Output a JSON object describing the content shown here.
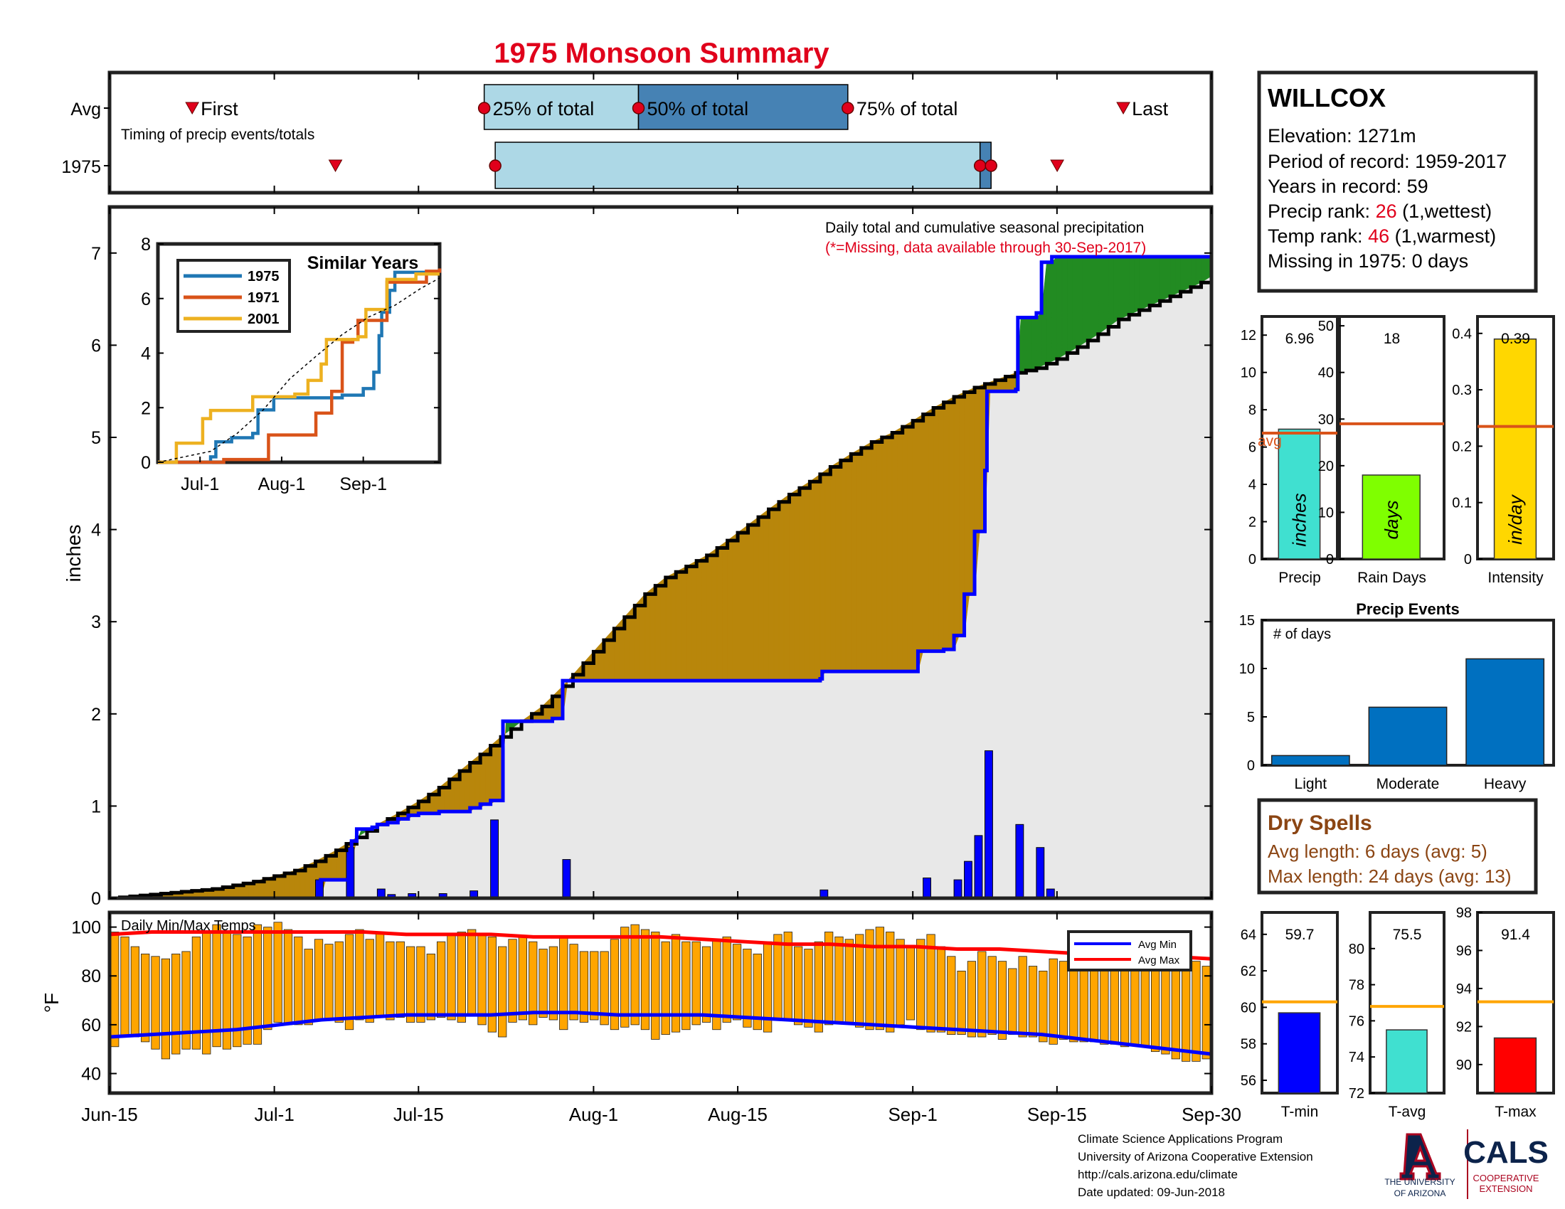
{
  "title": "1975 Monsoon Summary",
  "timing": {
    "row_avg": "Avg",
    "row_year": "1975",
    "caption": "Timing of precip events/totals",
    "first": "First",
    "last": "Last",
    "p25": "25% of total",
    "p50": "50% of total",
    "p75": "75% of total",
    "avg_marks": {
      "first": 7.5,
      "p25": 34,
      "p50": 48,
      "p75": 67,
      "last": 92
    },
    "year_marks": {
      "first": 20.5,
      "p25": 35,
      "p50": 79,
      "p75": 80,
      "last": 86
    }
  },
  "station": {
    "name": "WILLCOX",
    "elevation": "Elevation: 1271m",
    "period": "Period of record: 1959-2017",
    "years": "Years in record: 59",
    "precip_rank_label": "Precip rank: ",
    "precip_rank": "26",
    "precip_rank_note": " (1,wettest)",
    "temp_rank_label": "Temp rank: ",
    "temp_rank": "46",
    "temp_rank_note": " (1,warmest)",
    "missing": "Missing in 1975: 0 days"
  },
  "main_chart": {
    "annotation": "Daily total and cumulative seasonal precipitation",
    "missing_note": "(*=Missing, data available through 30-Sep-2017)",
    "ylabel": "inches",
    "y_ticks": [
      "0",
      "1",
      "2",
      "3",
      "4",
      "5",
      "6",
      "7"
    ],
    "x_ticks": [
      "Jun-15",
      "Jul-1",
      "Jul-15",
      "Aug-1",
      "Aug-15",
      "Sep-1",
      "Sep-15",
      "Sep-30"
    ]
  },
  "chart_data": [
    {
      "type": "area",
      "name": "cumulative-precip",
      "x_unit": "day of season (0 = Jun-15)",
      "ylim": [
        0,
        7.5
      ],
      "xlim": [
        0,
        107
      ],
      "avg_cumulative": [
        [
          0,
          0
        ],
        [
          2,
          0.02
        ],
        [
          4,
          0.04
        ],
        [
          6,
          0.06
        ],
        [
          8,
          0.08
        ],
        [
          10,
          0.1
        ],
        [
          12,
          0.14
        ],
        [
          14,
          0.18
        ],
        [
          16,
          0.24
        ],
        [
          18,
          0.3
        ],
        [
          20,
          0.4
        ],
        [
          22,
          0.52
        ],
        [
          24,
          0.66
        ],
        [
          26,
          0.8
        ],
        [
          28,
          0.92
        ],
        [
          30,
          1.05
        ],
        [
          32,
          1.2
        ],
        [
          34,
          1.38
        ],
        [
          36,
          1.56
        ],
        [
          38,
          1.75
        ],
        [
          40,
          1.92
        ],
        [
          42,
          2.08
        ],
        [
          44,
          2.3
        ],
        [
          46,
          2.55
        ],
        [
          48,
          2.8
        ],
        [
          50,
          3.05
        ],
        [
          52,
          3.3
        ],
        [
          54,
          3.48
        ],
        [
          56,
          3.6
        ],
        [
          58,
          3.72
        ],
        [
          60,
          3.88
        ],
        [
          62,
          4.05
        ],
        [
          64,
          4.22
        ],
        [
          66,
          4.38
        ],
        [
          68,
          4.52
        ],
        [
          70,
          4.68
        ],
        [
          72,
          4.82
        ],
        [
          74,
          4.95
        ],
        [
          76,
          5.05
        ],
        [
          78,
          5.18
        ],
        [
          80,
          5.32
        ],
        [
          82,
          5.44
        ],
        [
          84,
          5.54
        ],
        [
          86,
          5.62
        ],
        [
          88,
          5.7
        ],
        [
          90,
          5.75
        ],
        [
          92,
          5.85
        ],
        [
          94,
          5.98
        ],
        [
          96,
          6.12
        ],
        [
          98,
          6.28
        ],
        [
          100,
          6.38
        ],
        [
          102,
          6.48
        ],
        [
          104,
          6.58
        ],
        [
          106,
          6.68
        ],
        [
          107,
          6.75
        ]
      ],
      "year_cumulative": [
        [
          0,
          0
        ],
        [
          20,
          0
        ],
        [
          20.5,
          0.2
        ],
        [
          23,
          0.2
        ],
        [
          23.2,
          0.42
        ],
        [
          23.5,
          0.62
        ],
        [
          24,
          0.75
        ],
        [
          25.5,
          0.77
        ],
        [
          26,
          0.8
        ],
        [
          27,
          0.82
        ],
        [
          28,
          0.86
        ],
        [
          29,
          0.9
        ],
        [
          30,
          0.92
        ],
        [
          32,
          0.94
        ],
        [
          35,
          0.98
        ],
        [
          36,
          1.02
        ],
        [
          37,
          1.06
        ],
        [
          38,
          1.06
        ],
        [
          38.2,
          1.92
        ],
        [
          43,
          1.95
        ],
        [
          44,
          2.36
        ],
        [
          69,
          2.38
        ],
        [
          69.2,
          2.46
        ],
        [
          78,
          2.46
        ],
        [
          78.5,
          2.68
        ],
        [
          81,
          2.7
        ],
        [
          82,
          2.85
        ],
        [
          83,
          3.3
        ],
        [
          84,
          3.98
        ],
        [
          85,
          4.64
        ],
        [
          85.2,
          5.5
        ],
        [
          88,
          5.52
        ],
        [
          88.2,
          6.3
        ],
        [
          90,
          6.35
        ],
        [
          90.5,
          6.9
        ],
        [
          91.5,
          6.96
        ],
        [
          107,
          6.96
        ]
      ],
      "series": [
        {
          "name": "",
          "color": "#0000ff"
        },
        {
          "name": "",
          "color": "#000000"
        }
      ],
      "fill_colors": {
        "below_avg": "#b8860b",
        "above_avg": "#228b22",
        "base": "#e8e8e8"
      },
      "daily_bars": [
        [
          20,
          0.2
        ],
        [
          23,
          0.55
        ],
        [
          26,
          0.1
        ],
        [
          27,
          0.04
        ],
        [
          29,
          0.05
        ],
        [
          32,
          0.05
        ],
        [
          35,
          0.08
        ],
        [
          37,
          0.85
        ],
        [
          44,
          0.42
        ],
        [
          69,
          0.09
        ],
        [
          79,
          0.22
        ],
        [
          82,
          0.2
        ],
        [
          83,
          0.4
        ],
        [
          84,
          0.68
        ],
        [
          85,
          1.6
        ],
        [
          88,
          0.8
        ],
        [
          90,
          0.55
        ],
        [
          91,
          0.1
        ]
      ]
    },
    {
      "type": "line",
      "name": "similar-years",
      "title": "Similar Years",
      "x_ticks": [
        "Jul-1",
        "Aug-1",
        "Sep-1"
      ],
      "y_ticks": [
        "0",
        "2",
        "4",
        "6",
        "8"
      ],
      "ylim": [
        0,
        8
      ],
      "series": [
        {
          "name": "1975",
          "color": "#1f77b4",
          "points": [
            [
              0,
              0
            ],
            [
              18,
              0
            ],
            [
              20,
              0.2
            ],
            [
              22,
              0.75
            ],
            [
              28,
              0.9
            ],
            [
              36,
              1.06
            ],
            [
              38,
              1.92
            ],
            [
              44,
              2.36
            ],
            [
              70,
              2.46
            ],
            [
              78,
              2.7
            ],
            [
              82,
              3.3
            ],
            [
              84,
              4.64
            ],
            [
              85,
              5.5
            ],
            [
              88,
              6.3
            ],
            [
              90,
              6.96
            ],
            [
              107,
              6.96
            ]
          ]
        },
        {
          "name": "1971",
          "color": "#d95319",
          "points": [
            [
              0,
              0
            ],
            [
              22,
              0
            ],
            [
              25,
              0.1
            ],
            [
              40,
              0.1
            ],
            [
              42,
              1.0
            ],
            [
              58,
              1.0
            ],
            [
              60,
              1.8
            ],
            [
              63,
              1.8
            ],
            [
              66,
              2.6
            ],
            [
              69,
              2.6
            ],
            [
              70,
              4.4
            ],
            [
              74,
              4.5
            ],
            [
              76,
              5.2
            ],
            [
              86,
              5.2
            ],
            [
              87,
              6.6
            ],
            [
              100,
              6.6
            ],
            [
              102,
              7.0
            ],
            [
              107,
              7.1
            ]
          ]
        },
        {
          "name": "2001",
          "color": "#edb120",
          "points": [
            [
              0,
              0
            ],
            [
              5,
              0
            ],
            [
              7,
              0.7
            ],
            [
              15,
              0.7
            ],
            [
              17,
              1.6
            ],
            [
              20,
              1.9
            ],
            [
              33,
              1.9
            ],
            [
              36,
              2.4
            ],
            [
              48,
              2.4
            ],
            [
              52,
              2.5
            ],
            [
              57,
              3.0
            ],
            [
              62,
              3.6
            ],
            [
              64,
              4.5
            ],
            [
              76,
              4.6
            ],
            [
              79,
              5.6
            ],
            [
              85,
              5.6
            ],
            [
              87,
              6.7
            ],
            [
              92,
              6.7
            ],
            [
              98,
              6.9
            ],
            [
              107,
              6.9
            ]
          ]
        },
        {
          "name": "",
          "color": "#000000",
          "points": [
            [
              0,
              0
            ],
            [
              20,
              0.4
            ],
            [
              30,
              1.05
            ],
            [
              40,
              1.92
            ],
            [
              50,
              3.05
            ],
            [
              60,
              3.88
            ],
            [
              70,
              4.68
            ],
            [
              80,
              5.32
            ],
            [
              90,
              5.75
            ],
            [
              100,
              6.38
            ],
            [
              107,
              6.75
            ]
          ]
        }
      ]
    },
    {
      "type": "bar",
      "name": "precip-total",
      "xlabel": "Precip",
      "inner_label": "inches",
      "value": 6.96,
      "value_label": "6.96",
      "avg": 6.75,
      "avg_label": "avg",
      "ylim": [
        0,
        13
      ],
      "y_ticks": [
        "0",
        "2",
        "4",
        "6",
        "8",
        "10",
        "12"
      ],
      "color": "#40e0d0"
    },
    {
      "type": "bar",
      "name": "rain-days",
      "xlabel": "Rain Days",
      "inner_label": "days",
      "value": 18,
      "value_label": "18",
      "avg": 29,
      "ylim": [
        0,
        52
      ],
      "y_ticks": [
        "0",
        "10",
        "20",
        "30",
        "40",
        "50"
      ],
      "color": "#7fff00"
    },
    {
      "type": "bar",
      "name": "intensity",
      "xlabel": "Intensity",
      "inner_label": "in/day",
      "value": 0.39,
      "value_label": "0.39",
      "avg": 0.235,
      "ylim": [
        0,
        0.43
      ],
      "y_ticks": [
        "0",
        "0.1",
        "0.2",
        "0.3",
        "0.4"
      ],
      "color": "#ffd700"
    },
    {
      "type": "bar",
      "name": "precip-events",
      "title": "Precip Events",
      "ylabel": "# of days",
      "categories": [
        "Light",
        "Moderate",
        "Heavy"
      ],
      "values": [
        1,
        6,
        11
      ],
      "ylim": [
        0,
        15
      ],
      "y_ticks": [
        "0",
        "5",
        "10",
        "15"
      ],
      "color": "#0070c0"
    },
    {
      "type": "bar",
      "name": "daily-temps",
      "title": "Daily Min/Max Temps",
      "ylabel": "°F",
      "ylim": [
        32,
        106
      ],
      "y_ticks": [
        "40",
        "60",
        "80",
        "100"
      ],
      "color": "#ffa500",
      "legend": [
        {
          "name": "Avg Min",
          "color": "#0000ff"
        },
        {
          "name": "Avg Max",
          "color": "#ff0000"
        }
      ],
      "max_temps": [
        98,
        96,
        92,
        89,
        88,
        87,
        89,
        90,
        96,
        98,
        101,
        98,
        97,
        96,
        101,
        100,
        102,
        99,
        96,
        91,
        95,
        93,
        94,
        97,
        99,
        95,
        98,
        94,
        94,
        92,
        92,
        89,
        94,
        97,
        98,
        99,
        97,
        96,
        92,
        95,
        96,
        94,
        91,
        92,
        96,
        93,
        90,
        90,
        90,
        95,
        100,
        101,
        99,
        98,
        94,
        97,
        94,
        94,
        92,
        95,
        96,
        93,
        91,
        89,
        94,
        97,
        98,
        92,
        91,
        94,
        98,
        96,
        95,
        97,
        99,
        100,
        98,
        95,
        92,
        95,
        97,
        92,
        88,
        82,
        86,
        90,
        88,
        86,
        83,
        88,
        84,
        82,
        87,
        86,
        85,
        87,
        87,
        86,
        84,
        82,
        83,
        85,
        86,
        86,
        86,
        85,
        86,
        84
      ],
      "min_temps": [
        51,
        55,
        55,
        53,
        50,
        46,
        48,
        50,
        50,
        48,
        51,
        50,
        51,
        52,
        52,
        58,
        61,
        60,
        60,
        60,
        62,
        62,
        61,
        58,
        62,
        61,
        63,
        62,
        63,
        61,
        61,
        62,
        63,
        62,
        61,
        64,
        60,
        57,
        55,
        61,
        62,
        60,
        63,
        62,
        58,
        62,
        61,
        62,
        60,
        58,
        59,
        60,
        58,
        54,
        56,
        57,
        58,
        60,
        61,
        58,
        61,
        62,
        59,
        58,
        57,
        62,
        62,
        60,
        59,
        57,
        60,
        61,
        61,
        59,
        58,
        58,
        57,
        60,
        62,
        58,
        57,
        57,
        56,
        56,
        55,
        55,
        56,
        54,
        56,
        55,
        55,
        53,
        52,
        54,
        53,
        53,
        53,
        52,
        52,
        51,
        52,
        51,
        49,
        48,
        46,
        45,
        45,
        46
      ],
      "avg_max": [
        97,
        98,
        98,
        98,
        98,
        98,
        98,
        97,
        97,
        97,
        96,
        96,
        96,
        96,
        95,
        94,
        93,
        93,
        92,
        92,
        91,
        91,
        90,
        89,
        88,
        88,
        87
      ],
      "avg_min": [
        55,
        56,
        57,
        58,
        60,
        62,
        63,
        64,
        64,
        64,
        65,
        65,
        64,
        64,
        64,
        63,
        62,
        61,
        60,
        59,
        58,
        57,
        56,
        54,
        52,
        50,
        48
      ]
    },
    {
      "type": "bar",
      "name": "t-min",
      "xlabel": "T-min",
      "value": 59.7,
      "value_label": "59.7",
      "avg": 60.3,
      "ylim": [
        55.3,
        65.2
      ],
      "y_ticks": [
        "56",
        "58",
        "60",
        "62",
        "64"
      ],
      "color": "#0000ff"
    },
    {
      "type": "bar",
      "name": "t-avg",
      "xlabel": "T-avg",
      "value": 75.5,
      "value_label": "75.5",
      "avg": 76.8,
      "ylim": [
        72,
        82
      ],
      "y_ticks": [
        "72",
        "74",
        "76",
        "78",
        "80"
      ],
      "color": "#40e0d0"
    },
    {
      "type": "bar",
      "name": "t-max",
      "xlabel": "T-max",
      "value": 91.4,
      "value_label": "91.4",
      "avg": 93.3,
      "ylim": [
        88.5,
        98
      ],
      "y_ticks": [
        "90",
        "92",
        "94",
        "96",
        "98"
      ],
      "color": "#ff0000"
    }
  ],
  "dry_spells": {
    "title": "Dry Spells",
    "avg_length": "Avg length: 6 days (avg: 5)",
    "max_length": "Max length: 24 days (avg: 13)",
    "color": "#8b4513"
  },
  "footer": {
    "line1": "Climate Science Applications Program",
    "line2": "University of Arizona Cooperative Extension",
    "line3": "http://cals.arizona.edu/climate",
    "line4": " Date updated: 09-Jun-2018"
  },
  "logos": {
    "ua_line1": "THE UNIVERSITY",
    "ua_line2": "OF ARIZONA",
    "cals": "CALS",
    "cals_line1": "COOPERATIVE",
    "cals_line2": "EXTENSION"
  }
}
